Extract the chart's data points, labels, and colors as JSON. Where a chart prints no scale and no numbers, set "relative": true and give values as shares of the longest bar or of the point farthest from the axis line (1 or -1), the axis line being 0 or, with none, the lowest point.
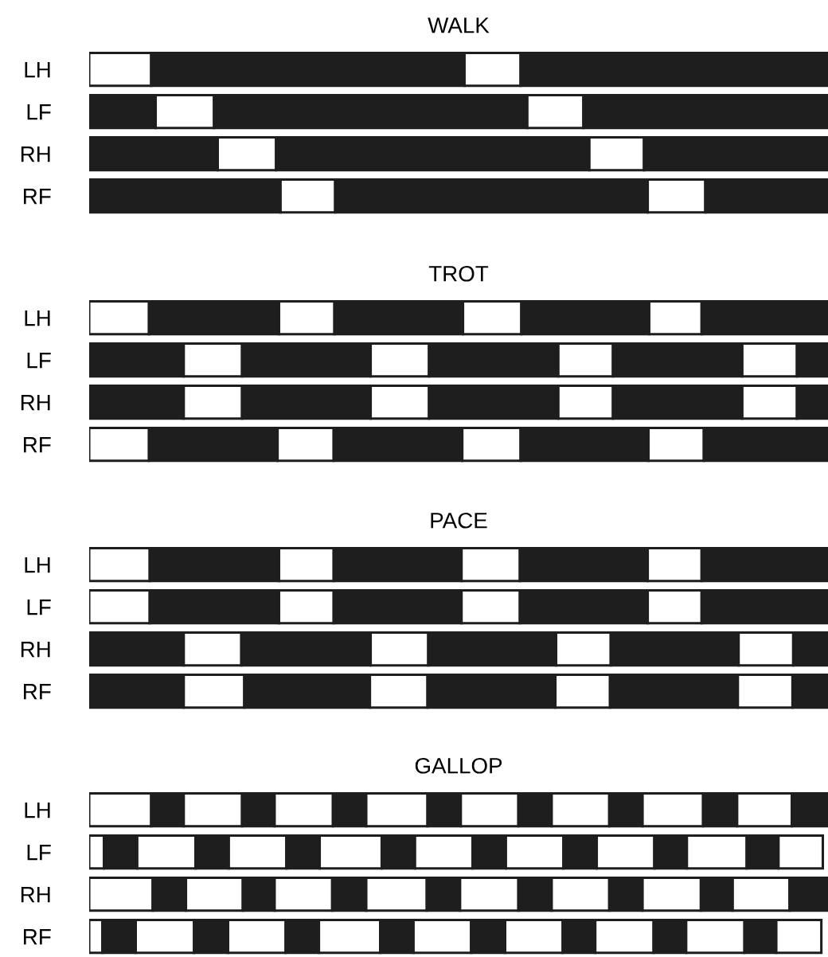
{
  "chart_data": [
    {
      "type": "bar",
      "title": "WALK",
      "orientation": "horizontal",
      "stacked": true,
      "relative": true,
      "categories": [
        "LH",
        "LF",
        "RH",
        "RF"
      ],
      "series": [
        {
          "colors": [
            "#ffffff",
            "#1e1e1e",
            "#1e1e1e",
            "#1e1e1e"
          ],
          "values": [
            0.084,
            0.09,
            0.174,
            0.259
          ]
        },
        {
          "colors": [
            "#1e1e1e",
            "#ffffff",
            "#ffffff",
            "#ffffff"
          ],
          "values": [
            0.424,
            0.079,
            0.079,
            0.074
          ]
        },
        {
          "colors": [
            "#ffffff",
            "#1e1e1e",
            "#1e1e1e",
            "#1e1e1e"
          ],
          "values": [
            0.076,
            0.424,
            0.424,
            0.423
          ]
        },
        {
          "colors": [
            "#1e1e1e",
            "#ffffff",
            "#ffffff",
            "#ffffff"
          ],
          "values": [
            0.416,
            0.076,
            0.074,
            0.078
          ]
        },
        {
          "colors": [
            "#1e1e1e",
            "#1e1e1e",
            "#1e1e1e",
            "#1e1e1e"
          ],
          "values": [
            null,
            0.331,
            0.249,
            0.166
          ]
        }
      ]
    },
    {
      "type": "bar",
      "title": "TROT",
      "orientation": "horizontal",
      "stacked": true,
      "relative": true,
      "categories": [
        "LH",
        "LF",
        "RH",
        "RF"
      ],
      "series": [
        {
          "colors": [
            "#ffffff",
            "#1e1e1e",
            "#1e1e1e",
            "#ffffff"
          ],
          "values": [
            0.081,
            0.128,
            0.128,
            0.081
          ]
        },
        {
          "colors": [
            "#1e1e1e",
            "#ffffff",
            "#ffffff",
            "#1e1e1e"
          ],
          "values": [
            0.176,
            0.079,
            0.079,
            0.174
          ]
        },
        {
          "colors": [
            "#ffffff",
            "#1e1e1e",
            "#1e1e1e",
            "#ffffff"
          ],
          "values": [
            0.075,
            0.174,
            0.174,
            0.076
          ]
        },
        {
          "colors": [
            "#1e1e1e",
            "#ffffff",
            "#ffffff",
            "#1e1e1e"
          ],
          "values": [
            0.174,
            0.079,
            0.079,
            0.174
          ]
        },
        {
          "colors": [
            "#ffffff",
            "#1e1e1e",
            "#1e1e1e",
            "#ffffff"
          ],
          "values": [
            0.079,
            0.175,
            0.175,
            0.079
          ]
        },
        {
          "colors": [
            "#1e1e1e",
            "#ffffff",
            "#ffffff",
            "#1e1e1e"
          ],
          "values": [
            0.173,
            0.074,
            0.074,
            0.173
          ]
        },
        {
          "colors": [
            "#ffffff",
            "#1e1e1e",
            "#1e1e1e",
            "#ffffff"
          ],
          "values": [
            0.071,
            0.175,
            0.175,
            0.075
          ]
        },
        {
          "colors": [
            "#1e1e1e",
            "#ffffff",
            "#ffffff",
            "#1e1e1e"
          ],
          "values": [
            0.171,
            0.074,
            0.074,
            0.168
          ]
        },
        {
          "colors": [
            "#1e1e1e",
            "#1e1e1e",
            "#1e1e1e",
            "#1e1e1e"
          ],
          "values": [
            null,
            0.042,
            0.042,
            null
          ]
        }
      ]
    },
    {
      "type": "bar",
      "title": "PACE",
      "orientation": "horizontal",
      "stacked": true,
      "relative": true,
      "categories": [
        "LH",
        "LF",
        "RH",
        "RF"
      ],
      "series": [
        {
          "colors": [
            "#ffffff",
            "#ffffff",
            "#1e1e1e",
            "#1e1e1e"
          ],
          "values": [
            0.082,
            0.082,
            0.128,
            0.128
          ]
        },
        {
          "colors": [
            "#1e1e1e",
            "#1e1e1e",
            "#ffffff",
            "#ffffff"
          ],
          "values": [
            0.175,
            0.175,
            0.078,
            0.082
          ]
        },
        {
          "colors": [
            "#ffffff",
            "#ffffff",
            "#1e1e1e",
            "#1e1e1e"
          ],
          "values": [
            0.074,
            0.074,
            0.175,
            0.17
          ]
        },
        {
          "colors": [
            "#1e1e1e",
            "#1e1e1e",
            "#ffffff",
            "#ffffff"
          ],
          "values": [
            0.173,
            0.173,
            0.078,
            0.078
          ]
        },
        {
          "colors": [
            "#ffffff",
            "#ffffff",
            "#1e1e1e",
            "#1e1e1e"
          ],
          "values": [
            0.079,
            0.079,
            0.173,
            0.173
          ]
        },
        {
          "colors": [
            "#1e1e1e",
            "#1e1e1e",
            "#ffffff",
            "#ffffff"
          ],
          "values": [
            0.173,
            0.173,
            0.074,
            0.074
          ]
        },
        {
          "colors": [
            "#ffffff",
            "#ffffff",
            "#1e1e1e",
            "#1e1e1e"
          ],
          "values": [
            0.073,
            0.073,
            0.173,
            0.173
          ]
        },
        {
          "colors": [
            "#1e1e1e",
            "#1e1e1e",
            "#ffffff",
            "#ffffff"
          ],
          "values": [
            0.171,
            0.171,
            0.074,
            0.074
          ]
        },
        {
          "colors": [
            "#1e1e1e",
            "#1e1e1e",
            "#1e1e1e",
            "#1e1e1e"
          ],
          "values": [
            null,
            null,
            0.047,
            0.048
          ]
        }
      ]
    },
    {
      "type": "bar",
      "title": "GALLOP",
      "orientation": "horizontal",
      "stacked": true,
      "relative": true,
      "categories": [
        "LH",
        "LF",
        "RH",
        "RF"
      ],
      "series": [
        {
          "colors": [
            "#ffffff",
            "#ffffff",
            "#ffffff",
            "#ffffff"
          ],
          "values": [
            0.084,
            0.02,
            0.086,
            0.018
          ]
        },
        {
          "colors": [
            "#1e1e1e",
            "#1e1e1e",
            "#1e1e1e",
            "#1e1e1e"
          ],
          "values": [
            0.044,
            0.045,
            0.045,
            0.045
          ]
        },
        {
          "colors": [
            "#ffffff",
            "#ffffff",
            "#ffffff",
            "#ffffff"
          ],
          "values": [
            0.079,
            0.079,
            0.077,
            0.079
          ]
        },
        {
          "colors": [
            "#1e1e1e",
            "#1e1e1e",
            "#1e1e1e",
            "#1e1e1e"
          ],
          "values": [
            0.044,
            0.045,
            0.043,
            0.046
          ]
        },
        {
          "colors": [
            "#ffffff",
            "#ffffff",
            "#ffffff",
            "#ffffff"
          ],
          "values": [
            0.079,
            0.078,
            0.078,
            0.078
          ]
        },
        {
          "colors": [
            "#1e1e1e",
            "#1e1e1e",
            "#1e1e1e",
            "#1e1e1e"
          ],
          "values": [
            0.045,
            0.045,
            0.046,
            0.045
          ]
        },
        {
          "colors": [
            "#ffffff",
            "#ffffff",
            "#ffffff",
            "#ffffff"
          ],
          "values": [
            0.083,
            0.084,
            0.082,
            0.083
          ]
        },
        {
          "colors": [
            "#1e1e1e",
            "#1e1e1e",
            "#1e1e1e",
            "#1e1e1e"
          ],
          "values": [
            0.045,
            0.045,
            0.045,
            0.045
          ]
        },
        {
          "colors": [
            "#ffffff",
            "#ffffff",
            "#ffffff",
            "#ffffff"
          ],
          "values": [
            0.078,
            0.078,
            0.079,
            0.078
          ]
        },
        {
          "colors": [
            "#1e1e1e",
            "#1e1e1e",
            "#1e1e1e",
            "#1e1e1e"
          ],
          "values": [
            0.045,
            0.045,
            0.045,
            0.046
          ]
        },
        {
          "colors": [
            "#ffffff",
            "#ffffff",
            "#ffffff",
            "#ffffff"
          ],
          "values": [
            0.078,
            0.078,
            0.078,
            0.078
          ]
        },
        {
          "colors": [
            "#1e1e1e",
            "#1e1e1e",
            "#1e1e1e",
            "#1e1e1e"
          ],
          "values": [
            0.045,
            0.045,
            0.045,
            0.044
          ]
        },
        {
          "colors": [
            "#ffffff",
            "#ffffff",
            "#ffffff",
            "#ffffff"
          ],
          "values": [
            0.082,
            0.078,
            0.079,
            0.079
          ]
        },
        {
          "colors": [
            "#1e1e1e",
            "#1e1e1e",
            "#1e1e1e",
            "#1e1e1e"
          ],
          "values": [
            0.046,
            0.044,
            0.043,
            0.044
          ]
        },
        {
          "colors": [
            "#ffffff",
            "#ffffff",
            "#ffffff",
            "#ffffff"
          ],
          "values": [
            0.074,
            0.081,
            0.077,
            0.079
          ]
        },
        {
          "colors": [
            "#1e1e1e",
            "#1e1e1e",
            "#1e1e1e",
            "#1e1e1e"
          ],
          "values": [
            0.049,
            0.043,
            0.052,
            0.043
          ]
        },
        {
          "colors": [
            "#ffffff",
            "#ffffff",
            "#ffffff",
            "#ffffff"
          ],
          "values": [
            null,
            0.06,
            null,
            0.061
          ]
        }
      ]
    }
  ]
}
